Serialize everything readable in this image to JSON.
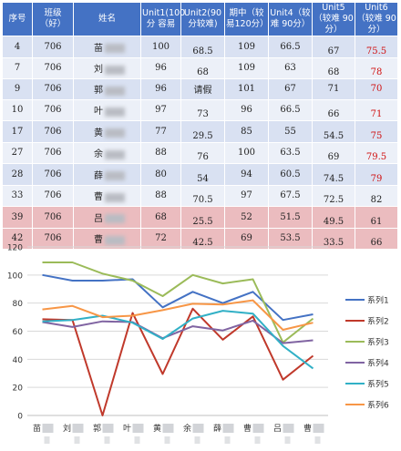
{
  "table": {
    "headers": [
      "序号",
      "班级（好）",
      "姓名",
      "Unit1(100分 容易",
      "Unit2(90分较难)",
      "期中（较易120分）",
      "Unit4（较难 90分）",
      "Unit5（较难 90分）",
      "Unit6（较难 90分）"
    ],
    "rows": [
      {
        "no": "4",
        "cls": "706",
        "name": "苗",
        "u1": "100",
        "u2": "68.5",
        "mid": "109",
        "u4": "66.5",
        "u5": "67",
        "u6": "75.5",
        "u6_red": true
      },
      {
        "no": "7",
        "cls": "706",
        "name": "刘",
        "u1": "96",
        "u2": "68",
        "mid": "109",
        "u4": "63",
        "u5": "68",
        "u6": "78",
        "u6_red": true
      },
      {
        "no": "9",
        "cls": "706",
        "name": "郭",
        "u1": "96",
        "u2": "请假",
        "mid": "101",
        "u4": "67",
        "u5": "71",
        "u6": "70",
        "u6_red": true
      },
      {
        "no": "10",
        "cls": "706",
        "name": "叶",
        "u1": "97",
        "u2": "73",
        "mid": "96",
        "u4": "66.5",
        "u5": "66",
        "u6": "71",
        "u6_red": true
      },
      {
        "no": "17",
        "cls": "706",
        "name": "黄",
        "u1": "77",
        "u2": "29.5",
        "mid": "85",
        "u4": "55",
        "u5": "54.5",
        "u6": "75",
        "u6_red": true
      },
      {
        "no": "27",
        "cls": "706",
        "name": "余",
        "u1": "88",
        "u2": "76",
        "mid": "100",
        "u4": "63.5",
        "u5": "69",
        "u6": "79.5",
        "u6_red": true
      },
      {
        "no": "28",
        "cls": "706",
        "name": "薛",
        "u1": "80",
        "u2": "54",
        "mid": "94",
        "u4": "60.5",
        "u5": "74.5",
        "u6": "79",
        "u6_red": true
      },
      {
        "no": "33",
        "cls": "706",
        "name": "曹",
        "u1": "88",
        "u2": "70.5",
        "mid": "97",
        "u4": "67.5",
        "u5": "72.5",
        "u6": "82",
        "u6_red": false
      },
      {
        "no": "39",
        "cls": "706",
        "name": "吕",
        "u1": "68",
        "u2": "25.5",
        "mid": "52",
        "u4": "51.5",
        "u5": "49.5",
        "u6": "61",
        "u6_red": false
      },
      {
        "no": "42",
        "cls": "706",
        "name": "曹",
        "u1": "72",
        "u2": "42.5",
        "mid": "69",
        "u4": "53.5",
        "u5": "33.5",
        "u6": "66",
        "u6_red": false
      }
    ]
  },
  "chart_data": {
    "type": "line",
    "categories": [
      "苗",
      "刘",
      "郭",
      "叶",
      "黄",
      "余",
      "薛",
      "曹",
      "吕",
      "曹"
    ],
    "ylim": [
      0,
      120
    ],
    "yticks": [
      0,
      20,
      40,
      60,
      80,
      100,
      120
    ],
    "grid": true,
    "legend_position": "right",
    "series": [
      {
        "name": "系列1",
        "color": "#4472c4",
        "values": [
          100,
          96,
          96,
          97,
          77,
          88,
          80,
          88,
          68,
          72
        ]
      },
      {
        "name": "系列2",
        "color": "#c0392b",
        "values": [
          68.5,
          68,
          0,
          73,
          29.5,
          76,
          54,
          70.5,
          25.5,
          42.5
        ]
      },
      {
        "name": "系列3",
        "color": "#9bbb59",
        "values": [
          109,
          109,
          101,
          96,
          85,
          100,
          94,
          97,
          52,
          69
        ]
      },
      {
        "name": "系列4",
        "color": "#8064a2",
        "values": [
          66.5,
          63,
          67,
          66.5,
          55,
          63.5,
          60.5,
          67.5,
          51.5,
          53.5
        ]
      },
      {
        "name": "系列5",
        "color": "#31b0c6",
        "values": [
          67,
          68,
          71,
          66,
          54.5,
          69,
          74.5,
          72.5,
          49.5,
          33.5
        ]
      },
      {
        "name": "系列6",
        "color": "#f79646",
        "values": [
          75.5,
          78,
          70,
          71,
          75,
          79.5,
          79,
          82,
          61,
          66
        ]
      }
    ]
  }
}
